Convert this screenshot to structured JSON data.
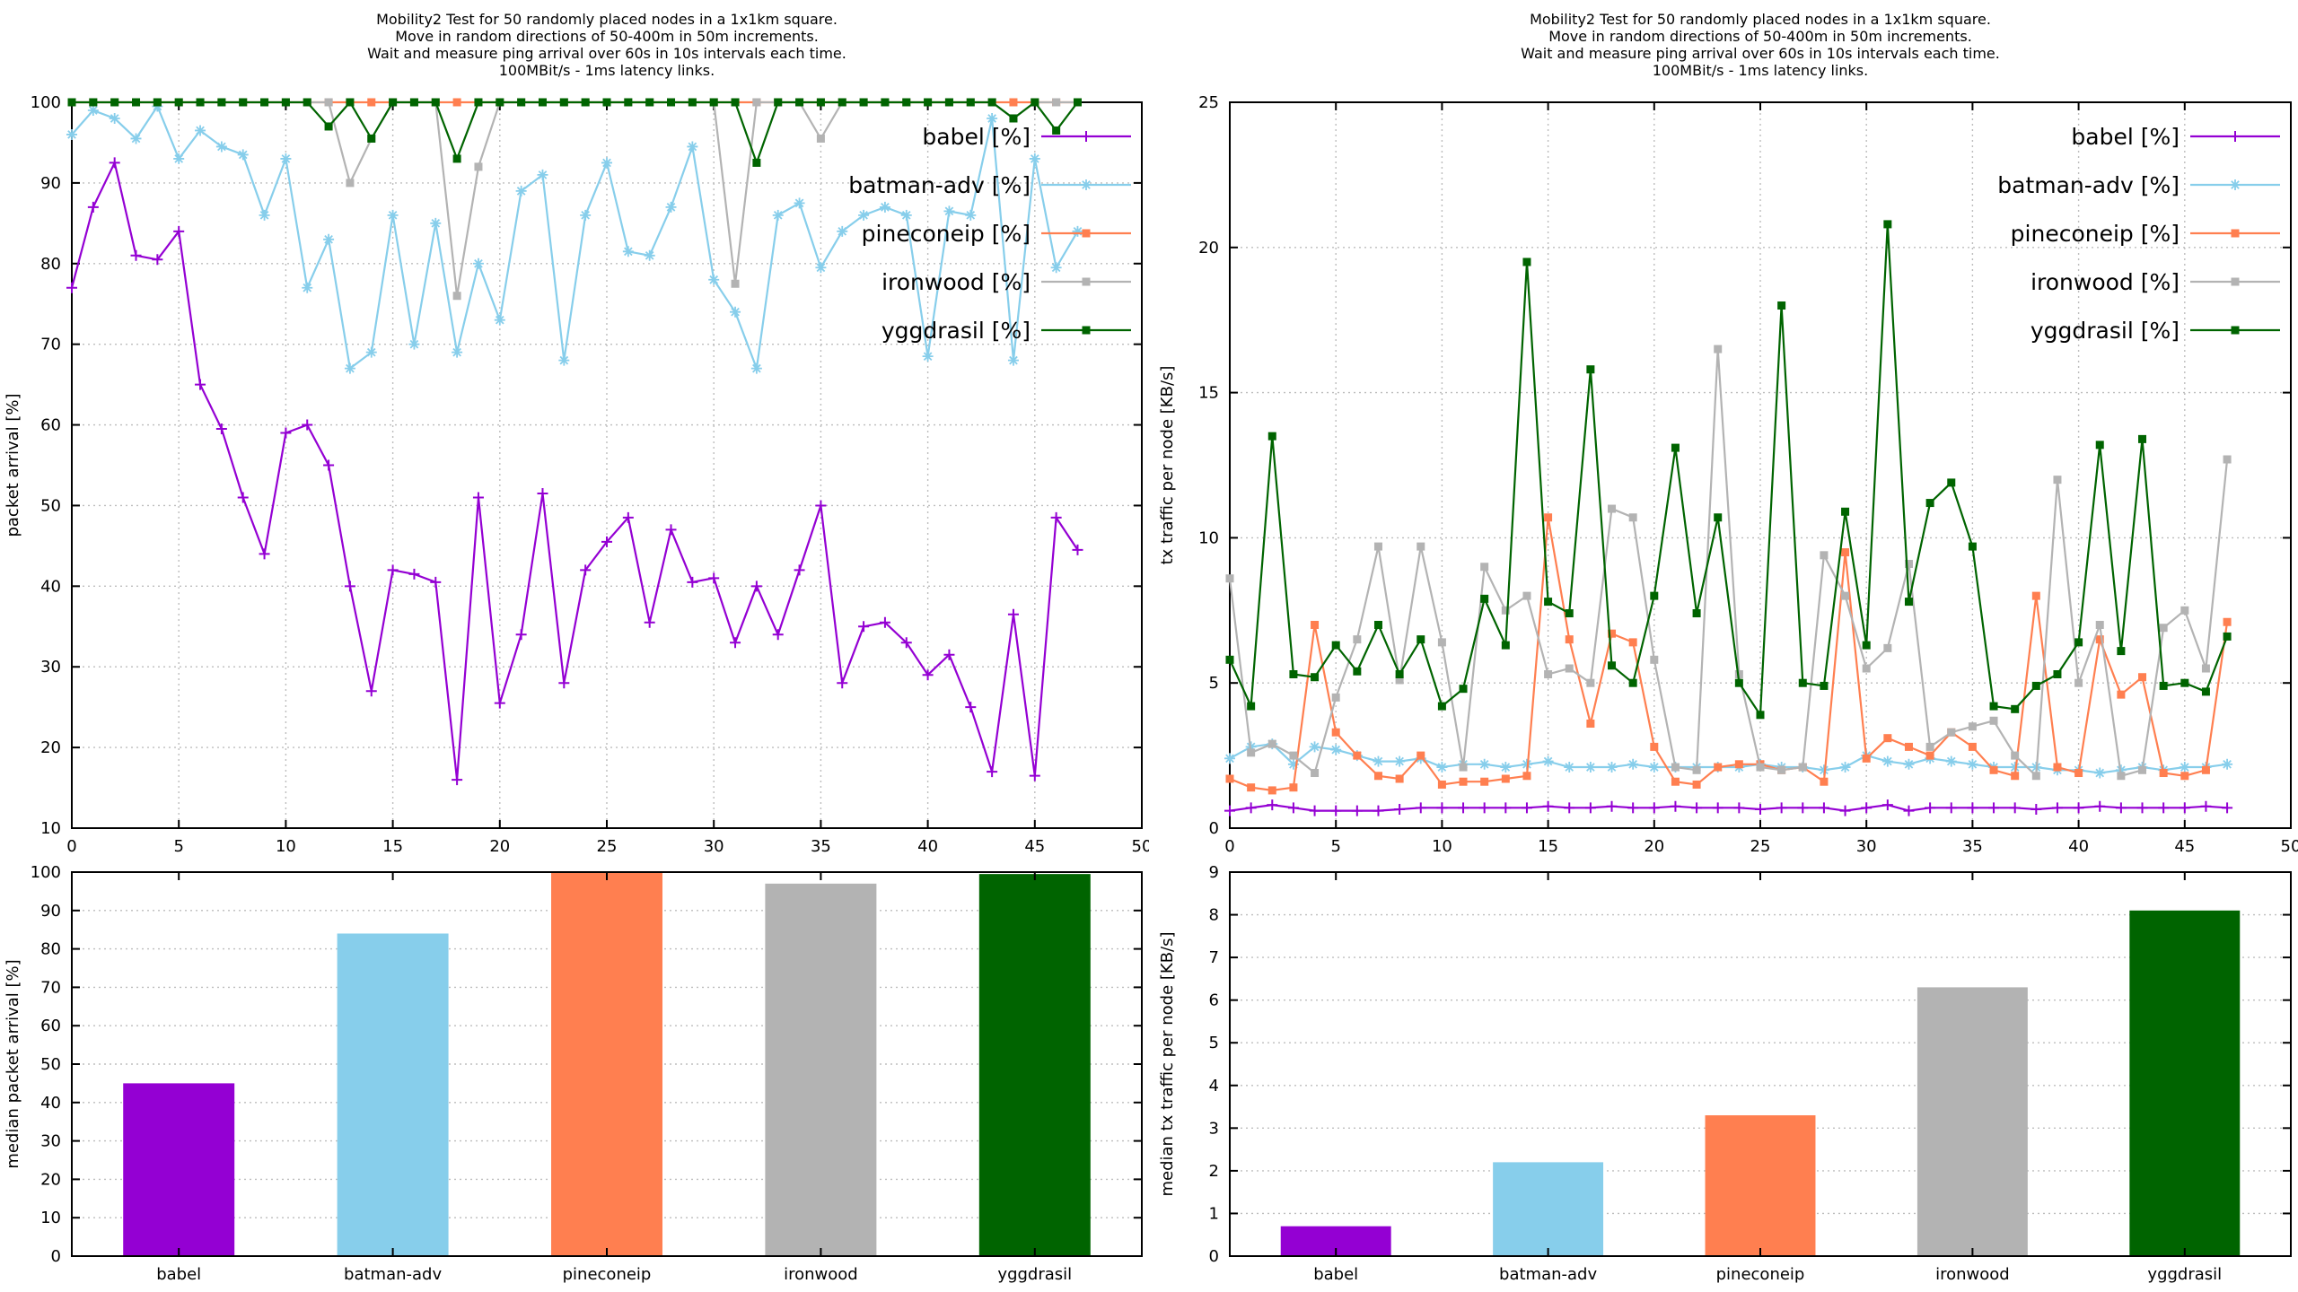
{
  "palette": {
    "babel": "#9400d3",
    "batman_adv": "#87ceeb",
    "pineconeip": "#ff7f50",
    "ironwood": "#b3b3b3",
    "yggdrasil": "#006400"
  },
  "chart_data": [
    {
      "id": "packet-arrival",
      "type": "line",
      "title_lines": [
        "Mobility2 Test for 50 randomly placed nodes in a 1x1km square.",
        "Move in random directions of 50-400m in 50m increments.",
        "Wait and measure ping arrival over 60s in 10s intervals each time.",
        "100MBit/s - 1ms latency links."
      ],
      "ylabel": "packet arrival [%]",
      "xlim": [
        0,
        50
      ],
      "ylim": [
        10,
        100
      ],
      "xtick_step": 5,
      "ytick_step": 10,
      "grid": "both",
      "legend_position": "top-right",
      "series": [
        {
          "name": "babel [%]",
          "color": "#9400d3",
          "marker": "plus",
          "values": [
            77,
            87,
            92.5,
            81,
            80.5,
            84,
            65,
            59.5,
            51,
            44,
            59,
            60,
            55,
            40,
            27,
            42,
            41.5,
            40.5,
            16,
            51,
            25.5,
            34,
            51.5,
            28,
            42,
            45.5,
            48.5,
            35.5,
            47,
            40.5,
            41,
            33,
            40,
            34,
            42,
            50,
            28,
            35,
            35.5,
            33,
            29,
            31.5,
            25,
            17,
            36.5,
            16.5,
            48.5,
            44.5
          ]
        },
        {
          "name": "batman-adv [%]",
          "color": "#87ceeb",
          "marker": "asterisk",
          "values": [
            96,
            99,
            98,
            95.5,
            99.5,
            93,
            96.5,
            94.5,
            93.5,
            86,
            93,
            77,
            83,
            67,
            69,
            86,
            70,
            85,
            69,
            80,
            73,
            89,
            91,
            68,
            86,
            92.5,
            81.5,
            81,
            87,
            94.5,
            78,
            74,
            67,
            86,
            87.5,
            79.5,
            84,
            86,
            87,
            86,
            68.5,
            86.5,
            86,
            98,
            68,
            93,
            79.5,
            84
          ]
        },
        {
          "name": "pineconeip [%]",
          "color": "#ff7f50",
          "marker": "square",
          "values": [
            100,
            100,
            100,
            100,
            100,
            100,
            100,
            100,
            100,
            100,
            100,
            100,
            100,
            100,
            100,
            100,
            100,
            100,
            100,
            100,
            100,
            100,
            100,
            100,
            100,
            100,
            100,
            100,
            100,
            100,
            100,
            100,
            100,
            100,
            100,
            100,
            100,
            100,
            100,
            100,
            100,
            100,
            100,
            100,
            100,
            100,
            100,
            100
          ]
        },
        {
          "name": "ironwood [%]",
          "color": "#b3b3b3",
          "marker": "square",
          "values": [
            100,
            100,
            100,
            100,
            100,
            100,
            100,
            100,
            100,
            100,
            100,
            100,
            100,
            90,
            95.5,
            100,
            100,
            100,
            76,
            92,
            100,
            100,
            100,
            100,
            100,
            100,
            100,
            100,
            100,
            100,
            100,
            77.5,
            100,
            100,
            100,
            95.5,
            100,
            100,
            100,
            100,
            100,
            100,
            100,
            100,
            98,
            100,
            100,
            100
          ]
        },
        {
          "name": "yggdrasil [%]",
          "color": "#006400",
          "marker": "square",
          "values": [
            100,
            100,
            100,
            100,
            100,
            100,
            100,
            100,
            100,
            100,
            100,
            100,
            97,
            100,
            95.5,
            100,
            100,
            100,
            93,
            100,
            100,
            100,
            100,
            100,
            100,
            100,
            100,
            100,
            100,
            100,
            100,
            100,
            92.5,
            100,
            100,
            100,
            100,
            100,
            100,
            100,
            100,
            100,
            100,
            100,
            98,
            100,
            96.5,
            100
          ]
        }
      ]
    },
    {
      "id": "tx-traffic",
      "type": "line",
      "title_lines": [
        "Mobility2 Test for 50 randomly placed nodes in a 1x1km square.",
        "Move in random directions of 50-400m in 50m increments.",
        "Wait and measure ping arrival over 60s in 10s intervals each time.",
        "100MBit/s - 1ms latency links."
      ],
      "ylabel": "tx traffic per node [KB/s]",
      "xlim": [
        0,
        50
      ],
      "ylim": [
        0,
        25
      ],
      "xtick_step": 5,
      "ytick_step": 5,
      "grid": "both",
      "legend_position": "top-right",
      "series": [
        {
          "name": "babel [%]",
          "color": "#9400d3",
          "marker": "plus",
          "values": [
            0.6,
            0.7,
            0.8,
            0.7,
            0.6,
            0.6,
            0.6,
            0.6,
            0.65,
            0.7,
            0.7,
            0.7,
            0.7,
            0.7,
            0.7,
            0.75,
            0.7,
            0.7,
            0.75,
            0.7,
            0.7,
            0.75,
            0.7,
            0.7,
            0.7,
            0.65,
            0.7,
            0.7,
            0.7,
            0.6,
            0.7,
            0.8,
            0.6,
            0.7,
            0.7,
            0.7,
            0.7,
            0.7,
            0.65,
            0.7,
            0.7,
            0.75,
            0.7,
            0.7,
            0.7,
            0.7,
            0.75,
            0.7
          ]
        },
        {
          "name": "batman-adv [%]",
          "color": "#87ceeb",
          "marker": "asterisk",
          "values": [
            2.4,
            2.8,
            2.9,
            2.2,
            2.8,
            2.7,
            2.5,
            2.3,
            2.3,
            2.4,
            2.1,
            2.2,
            2.2,
            2.1,
            2.2,
            2.3,
            2.1,
            2.1,
            2.1,
            2.2,
            2.1,
            2.1,
            2.1,
            2.1,
            2.1,
            2.2,
            2.1,
            2.1,
            2.0,
            2.1,
            2.5,
            2.3,
            2.2,
            2.4,
            2.3,
            2.2,
            2.1,
            2.1,
            2.1,
            2.0,
            2.0,
            1.9,
            2.0,
            2.1,
            2.0,
            2.1,
            2.1,
            2.2
          ]
        },
        {
          "name": "pineconeip [%]",
          "color": "#ff7f50",
          "marker": "square",
          "values": [
            1.7,
            1.4,
            1.3,
            1.4,
            7.0,
            3.3,
            2.5,
            1.8,
            1.7,
            2.5,
            1.5,
            1.6,
            1.6,
            1.7,
            1.8,
            10.7,
            6.5,
            3.6,
            6.7,
            6.4,
            2.8,
            1.6,
            1.5,
            2.1,
            2.2,
            2.2,
            2.0,
            2.1,
            1.6,
            9.5,
            2.4,
            3.1,
            2.8,
            2.5,
            3.3,
            2.8,
            2.0,
            1.8,
            8.0,
            2.1,
            1.9,
            6.5,
            4.6,
            5.2,
            1.9,
            1.8,
            2.0,
            7.1
          ]
        },
        {
          "name": "ironwood [%]",
          "color": "#b3b3b3",
          "marker": "square",
          "values": [
            8.6,
            2.6,
            2.9,
            2.5,
            1.9,
            4.5,
            6.5,
            9.7,
            5.1,
            9.7,
            6.4,
            2.1,
            9.0,
            7.5,
            8.0,
            5.3,
            5.5,
            5.0,
            11.0,
            10.7,
            5.8,
            2.1,
            2.0,
            16.5,
            5.3,
            2.1,
            2.0,
            2.1,
            9.4,
            8.0,
            5.5,
            6.2,
            9.1,
            2.8,
            3.3,
            3.5,
            3.7,
            2.5,
            1.8,
            12.0,
            5.0,
            7.0,
            1.8,
            2.0,
            6.9,
            7.5,
            5.5,
            12.7
          ]
        },
        {
          "name": "yggdrasil [%]",
          "color": "#006400",
          "marker": "square",
          "values": [
            5.8,
            4.2,
            13.5,
            5.3,
            5.2,
            6.3,
            5.4,
            7.0,
            5.3,
            6.5,
            4.2,
            4.8,
            7.9,
            6.3,
            19.5,
            7.8,
            7.4,
            15.8,
            5.6,
            5.0,
            8.0,
            13.1,
            7.4,
            10.7,
            5.0,
            3.9,
            18.0,
            5.0,
            4.9,
            10.9,
            6.3,
            20.8,
            7.8,
            11.2,
            11.9,
            9.7,
            4.2,
            4.1,
            4.9,
            5.3,
            6.4,
            13.2,
            6.1,
            13.4,
            4.9,
            5.0,
            4.7,
            6.6
          ]
        }
      ]
    },
    {
      "id": "median-packet-arrival",
      "type": "bar",
      "ylabel": "median packet arrival [%]",
      "ylim": [
        0,
        100
      ],
      "ytick_step": 10,
      "grid": "horizontal",
      "categories": [
        "babel",
        "batman-adv",
        "pineconeip",
        "ironwood",
        "yggdrasil"
      ],
      "values": [
        45,
        84,
        100,
        97,
        99.5
      ],
      "bar_colors": [
        "#9400d3",
        "#87ceeb",
        "#ff7f50",
        "#b3b3b3",
        "#006400"
      ]
    },
    {
      "id": "median-tx-traffic",
      "type": "bar",
      "ylabel": "median tx traffic per node [KB/s]",
      "ylim": [
        0,
        9
      ],
      "ytick_step": 1,
      "grid": "horizontal",
      "categories": [
        "babel",
        "batman-adv",
        "pineconeip",
        "ironwood",
        "yggdrasil"
      ],
      "values": [
        0.7,
        2.2,
        3.3,
        6.3,
        8.1
      ],
      "bar_colors": [
        "#9400d3",
        "#87ceeb",
        "#ff7f50",
        "#b3b3b3",
        "#006400"
      ]
    }
  ]
}
